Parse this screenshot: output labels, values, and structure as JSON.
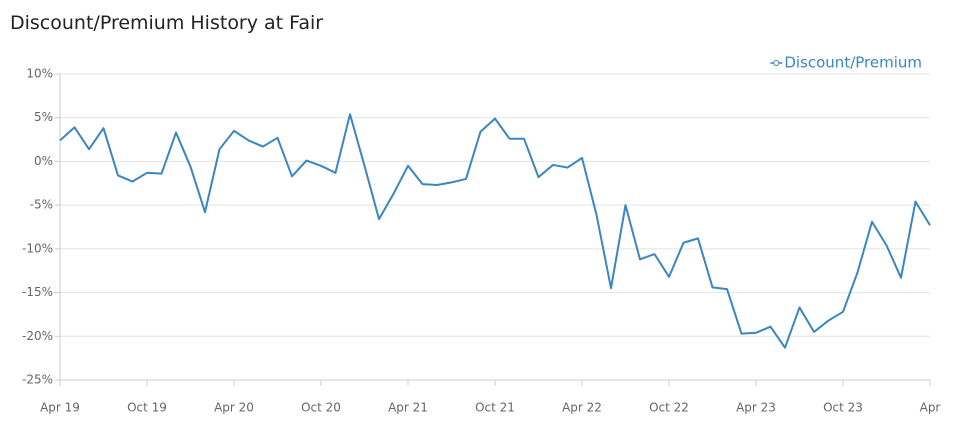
{
  "chart_data": {
    "type": "line",
    "title": "Discount/Premium History at Fair",
    "categories": [
      "Apr 19",
      null,
      null,
      null,
      null,
      null,
      "Oct 19",
      null,
      null,
      null,
      null,
      null,
      "Apr 20",
      null,
      null,
      null,
      null,
      null,
      "Oct 20",
      null,
      null,
      null,
      null,
      null,
      "Apr 21",
      null,
      null,
      null,
      null,
      null,
      "Oct 21",
      null,
      null,
      null,
      null,
      null,
      "Apr 22",
      null,
      null,
      null,
      null,
      null,
      "Oct 22",
      null,
      null,
      null,
      null,
      null,
      "Apr 23",
      null,
      null,
      null,
      null,
      null,
      "Oct 23",
      null,
      null,
      null,
      null,
      null,
      "Apr"
    ],
    "series": [
      {
        "name": "Discount/Premium",
        "color": "#3a86c0",
        "values": [
          2.4,
          3.9,
          1.4,
          3.8,
          -1.6,
          -2.3,
          -1.3,
          -1.4,
          3.3,
          -0.6,
          -5.8,
          1.4,
          3.5,
          2.4,
          1.7,
          2.7,
          -1.7,
          0.1,
          -0.5,
          -1.3,
          5.4,
          -0.5,
          -6.6,
          -3.7,
          -0.5,
          -2.6,
          -2.7,
          -2.4,
          -2.0,
          3.4,
          4.9,
          2.6,
          2.6,
          -1.8,
          -0.4,
          -0.7,
          0.4,
          -6.1,
          -14.5,
          -5.0,
          -11.2,
          -10.6,
          -13.2,
          -9.3,
          -8.8,
          -14.4,
          -14.6,
          -19.7,
          -19.6,
          -18.9,
          -21.3,
          -16.7,
          -19.5,
          -18.2,
          -17.2,
          -12.7,
          -6.9,
          -9.6,
          -13.3,
          -4.6,
          -7.3
        ]
      }
    ],
    "ylim": [
      -25,
      10
    ],
    "yticks": [
      {
        "value": -25,
        "label": "-25%"
      },
      {
        "value": -20,
        "label": "-20%"
      },
      {
        "value": -15,
        "label": "-15%"
      },
      {
        "value": -10,
        "label": "-10%"
      },
      {
        "value": -5,
        "label": "-5%"
      },
      {
        "value": 0,
        "label": "0%"
      },
      {
        "value": 5,
        "label": "5%"
      },
      {
        "value": 10,
        "label": "10%"
      }
    ],
    "grid": true,
    "legend": "top-right"
  }
}
